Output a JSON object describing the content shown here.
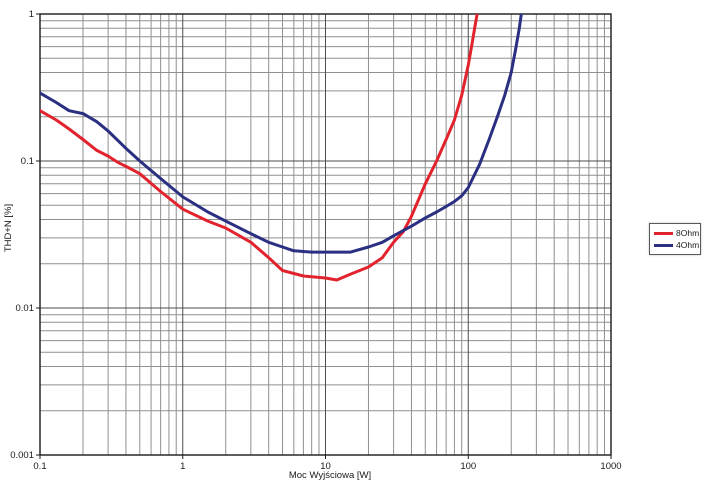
{
  "page": {
    "background": "#ffffff"
  },
  "chart_data": {
    "type": "line",
    "scale": "log-log",
    "title": "",
    "xlabel": "Moc Wyjściowa [W]",
    "ylabel": "THD+N [%]",
    "xlim": [
      0.1,
      1000
    ],
    "ylim": [
      0.001,
      1
    ],
    "grid": {
      "minor": true,
      "minor_color": "#8f8f8f",
      "major_color": "#4d4d4d",
      "border_color": "#1a1a1a"
    },
    "x_ticks": [
      {
        "v": 0.1,
        "label": "0.1"
      },
      {
        "v": 1,
        "label": "1"
      },
      {
        "v": 10,
        "label": "10"
      },
      {
        "v": 100,
        "label": "100"
      },
      {
        "v": 1000,
        "label": "1000"
      }
    ],
    "y_ticks": [
      {
        "v": 1,
        "label": "1"
      },
      {
        "v": 0.1,
        "label": "0.1"
      },
      {
        "v": 0.01,
        "label": "0.01"
      },
      {
        "v": 0.001,
        "label": "0.001"
      }
    ],
    "legend": {
      "position": "right-outside",
      "items": [
        {
          "label": "8Ohm",
          "color": "#e2232d"
        },
        {
          "label": "4Ohm",
          "color": "#2b2f82"
        }
      ]
    },
    "series": [
      {
        "name": "8Ohm",
        "color": "#e2232d",
        "x": [
          0.1,
          0.13,
          0.16,
          0.2,
          0.25,
          0.3,
          0.35,
          0.4,
          0.5,
          0.7,
          1,
          1.5,
          2,
          3,
          4,
          5,
          7,
          10,
          12,
          15,
          20,
          25,
          30,
          35,
          40,
          50,
          60,
          70,
          80,
          90,
          100,
          107,
          112,
          117
        ],
        "y": [
          0.22,
          0.19,
          0.165,
          0.14,
          0.118,
          0.108,
          0.098,
          0.092,
          0.082,
          0.062,
          0.047,
          0.039,
          0.035,
          0.028,
          0.022,
          0.018,
          0.0165,
          0.016,
          0.0155,
          0.017,
          0.019,
          0.022,
          0.028,
          0.033,
          0.042,
          0.07,
          0.1,
          0.14,
          0.19,
          0.28,
          0.45,
          0.65,
          0.85,
          1.08
        ]
      },
      {
        "name": "4Ohm",
        "color": "#2b2f82",
        "x": [
          0.1,
          0.13,
          0.16,
          0.2,
          0.25,
          0.3,
          0.4,
          0.5,
          0.7,
          1,
          1.5,
          2,
          3,
          4,
          5,
          6,
          8,
          10,
          12,
          15,
          20,
          25,
          30,
          40,
          50,
          60,
          70,
          80,
          90,
          100,
          120,
          140,
          160,
          180,
          200,
          215,
          228,
          238
        ],
        "y": [
          0.29,
          0.25,
          0.22,
          0.21,
          0.185,
          0.16,
          0.122,
          0.1,
          0.076,
          0.057,
          0.045,
          0.039,
          0.032,
          0.028,
          0.026,
          0.0245,
          0.024,
          0.024,
          0.024,
          0.024,
          0.026,
          0.028,
          0.031,
          0.036,
          0.041,
          0.045,
          0.049,
          0.053,
          0.058,
          0.066,
          0.095,
          0.14,
          0.2,
          0.28,
          0.4,
          0.58,
          0.8,
          1.08
        ]
      }
    ]
  }
}
